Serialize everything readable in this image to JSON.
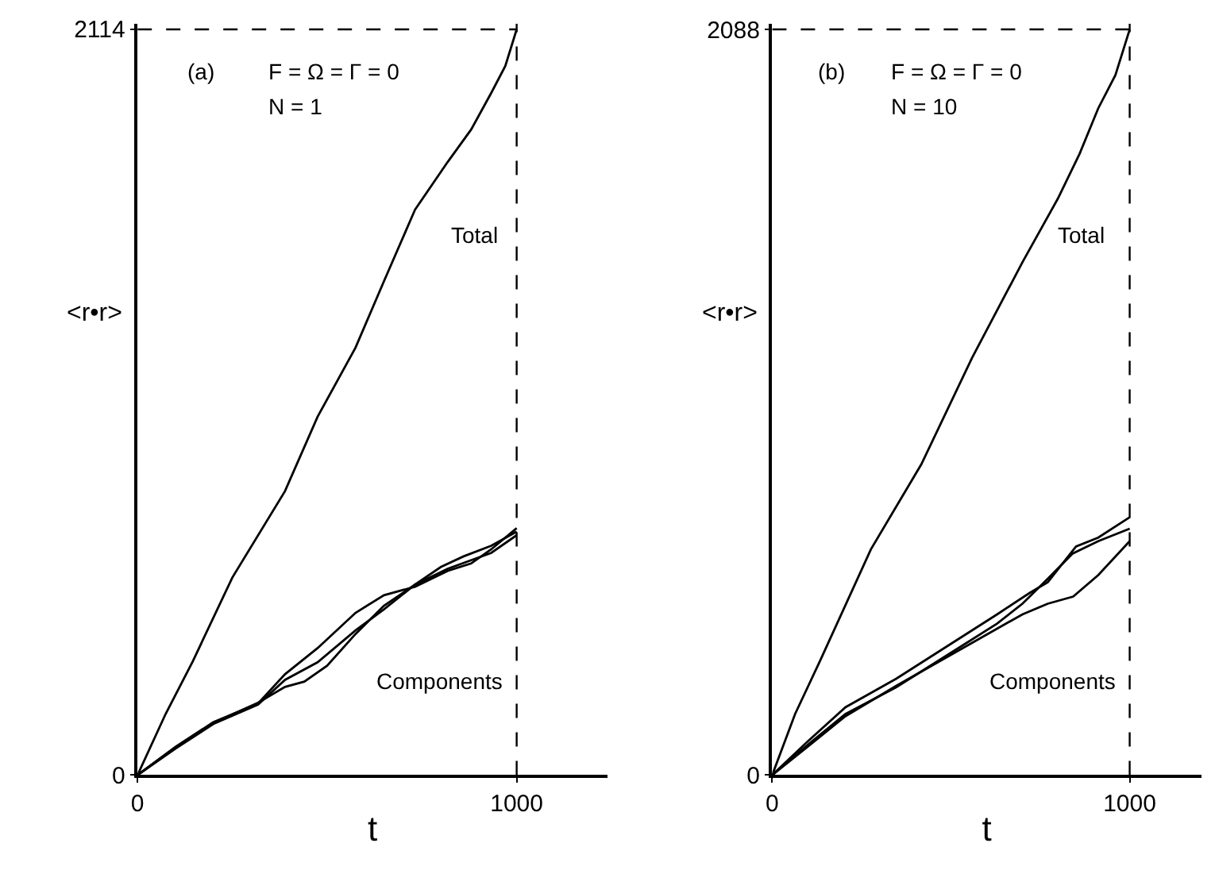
{
  "chart_data": [
    {
      "type": "line",
      "xlabel": "t",
      "ylabel": "<r•r>",
      "xlim": [
        0,
        1240
      ],
      "ylim": [
        0,
        2130
      ],
      "xticks": [
        0,
        1000
      ],
      "yticks": [
        0,
        2114
      ],
      "marker": "none",
      "line_style": "solid",
      "annotations": [
        "(a)",
        "F = Ω = Γ = 0",
        "N = 1",
        "Total",
        "Components"
      ],
      "ref_lines": [
        {
          "axis": "x",
          "value": 1000,
          "color": "#000000",
          "line_style": "dashed"
        },
        {
          "axis": "y",
          "value": 2114,
          "color": "#000000",
          "line_style": "dashed"
        }
      ],
      "series": [
        {
          "color": "#000000",
          "x": [
            0,
            74,
            146,
            250,
            389,
            475,
            575,
            650,
            732,
            818,
            880,
            933,
            970,
            1000
          ],
          "values": [
            0,
            173,
            323,
            560,
            805,
            1016,
            1212,
            1400,
            1603,
            1738,
            1830,
            1934,
            2010,
            2114
          ]
        },
        {
          "color": "#000000",
          "x": [
            0,
            100,
            200,
            318,
            389,
            475,
            575,
            650,
            732,
            818,
            880,
            933,
            1000
          ],
          "values": [
            0,
            80,
            150,
            203,
            286,
            360,
            460,
            510,
            534,
            579,
            600,
            640,
            700
          ]
        },
        {
          "color": "#000000",
          "x": [
            0,
            100,
            200,
            318,
            389,
            475,
            575,
            650,
            732,
            800,
            860,
            933,
            1000
          ],
          "values": [
            0,
            75,
            145,
            200,
            270,
            320,
            410,
            470,
            540,
            590,
            620,
            650,
            690
          ]
        },
        {
          "color": "#000000",
          "x": [
            0,
            100,
            200,
            318,
            389,
            440,
            500,
            575,
            650,
            732,
            818,
            933,
            1000
          ],
          "values": [
            0,
            78,
            148,
            205,
            250,
            265,
            310,
            400,
            480,
            540,
            585,
            630,
            680
          ]
        }
      ]
    },
    {
      "type": "line",
      "xlabel": "t",
      "ylabel": "<r•r>",
      "xlim": [
        0,
        1200
      ],
      "ylim": [
        0,
        2104
      ],
      "xticks": [
        0,
        1000
      ],
      "yticks": [
        0,
        2088
      ],
      "marker": "none",
      "line_style": "solid",
      "annotations": [
        "(b)",
        "F = Ω = Γ = 0",
        "N = 10",
        "Total",
        "Components"
      ],
      "ref_lines": [
        {
          "axis": "x",
          "value": 1000,
          "color": "#000000",
          "line_style": "dashed"
        },
        {
          "axis": "y",
          "value": 2088,
          "color": "#000000",
          "line_style": "dashed"
        }
      ],
      "series": [
        {
          "color": "#000000",
          "x": [
            0,
            64,
            134,
            276,
            417,
            559,
            700,
            799,
            860,
            912,
            960,
            1000
          ],
          "values": [
            0,
            171,
            320,
            632,
            870,
            1168,
            1436,
            1614,
            1740,
            1867,
            1960,
            2088
          ]
        },
        {
          "color": "#000000",
          "x": [
            0,
            100,
            205,
            347,
            488,
            629,
            720,
            771,
            850,
            912,
            1000
          ],
          "values": [
            0,
            95,
            190,
            270,
            360,
            450,
            510,
            540,
            640,
            665,
            722
          ]
        },
        {
          "color": "#000000",
          "x": [
            0,
            100,
            205,
            347,
            488,
            629,
            700,
            771,
            840,
            912,
            1000
          ],
          "values": [
            0,
            85,
            171,
            246,
            335,
            424,
            480,
            550,
            620,
            655,
            690
          ]
        },
        {
          "color": "#000000",
          "x": [
            0,
            100,
            205,
            347,
            488,
            629,
            700,
            771,
            842,
            912,
            1000
          ],
          "values": [
            0,
            80,
            165,
            250,
            330,
            410,
            450,
            480,
            500,
            560,
            655
          ]
        }
      ]
    }
  ]
}
